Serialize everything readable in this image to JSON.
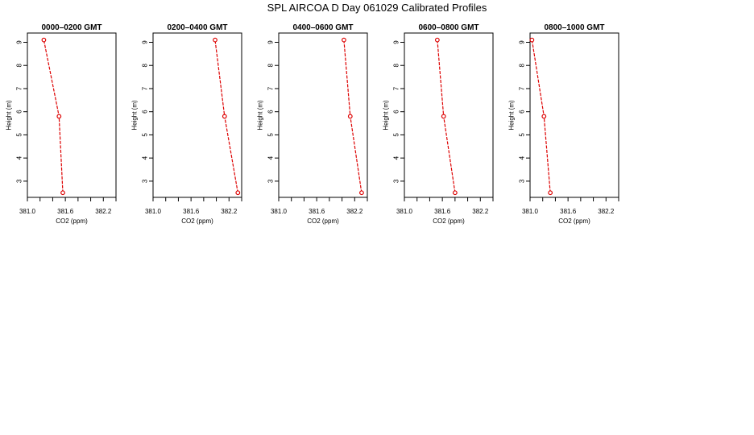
{
  "title": "SPL AIRCOA D  Day 061029  Calibrated Profiles",
  "colors": {
    "line": "#dd0000",
    "axis": "#000000"
  },
  "chart_data": [
    {
      "type": "line",
      "title": "0000–0200 GMT",
      "xlabel": "CO2 (ppm)",
      "ylabel": "Height (m)",
      "xlim": [
        381.0,
        382.4
      ],
      "ylim": [
        2.3,
        9.4
      ],
      "xticks": [
        381.0,
        381.2,
        381.4,
        381.6,
        381.8,
        382.0,
        382.2,
        382.4
      ],
      "xtick_labels": [
        "381.0",
        "",
        "381.6",
        "",
        "382.2"
      ],
      "xtick_labels_at": [
        381.0,
        381.3,
        381.6,
        381.9,
        382.2
      ],
      "yticks": [
        3,
        4,
        5,
        6,
        7,
        8,
        9
      ],
      "ytick_labels": [
        "3",
        "4",
        "5",
        "6",
        "7",
        "8",
        "9"
      ],
      "series": [
        {
          "x": [
            381.56,
            381.5,
            381.26
          ],
          "y": [
            2.5,
            5.8,
            9.1
          ]
        }
      ]
    },
    {
      "type": "line",
      "title": "0200–0400 GMT",
      "xlabel": "CO2 (ppm)",
      "ylabel": "Height (m)",
      "xlim": [
        381.0,
        382.4
      ],
      "ylim": [
        2.3,
        9.4
      ],
      "xticks": [
        381.0,
        381.2,
        381.4,
        381.6,
        381.8,
        382.0,
        382.2,
        382.4
      ],
      "xtick_labels": [
        "381.0",
        "",
        "381.6",
        "",
        "382.2"
      ],
      "xtick_labels_at": [
        381.0,
        381.3,
        381.6,
        381.9,
        382.2
      ],
      "yticks": [
        3,
        4,
        5,
        6,
        7,
        8,
        9
      ],
      "ytick_labels": [
        "3",
        "4",
        "5",
        "6",
        "7",
        "8",
        "9"
      ],
      "series": [
        {
          "x": [
            382.34,
            382.13,
            381.98
          ],
          "y": [
            2.5,
            5.8,
            9.1
          ]
        }
      ]
    },
    {
      "type": "line",
      "title": "0400–0600 GMT",
      "xlabel": "CO2 (ppm)",
      "ylabel": "Height (m)",
      "xlim": [
        381.0,
        382.4
      ],
      "ylim": [
        2.3,
        9.4
      ],
      "xticks": [
        381.0,
        381.2,
        381.4,
        381.6,
        381.8,
        382.0,
        382.2,
        382.4
      ],
      "xtick_labels": [
        "381.0",
        "",
        "381.6",
        "",
        "382.2"
      ],
      "xtick_labels_at": [
        381.0,
        381.3,
        381.6,
        381.9,
        382.2
      ],
      "yticks": [
        3,
        4,
        5,
        6,
        7,
        8,
        9
      ],
      "ytick_labels": [
        "3",
        "4",
        "5",
        "6",
        "7",
        "8",
        "9"
      ],
      "series": [
        {
          "x": [
            382.31,
            382.13,
            382.03
          ],
          "y": [
            2.5,
            5.8,
            9.1
          ]
        }
      ]
    },
    {
      "type": "line",
      "title": "0600–0800 GMT",
      "xlabel": "CO2 (ppm)",
      "ylabel": "Height (m)",
      "xlim": [
        381.0,
        382.4
      ],
      "ylim": [
        2.3,
        9.4
      ],
      "xticks": [
        381.0,
        381.2,
        381.4,
        381.6,
        381.8,
        382.0,
        382.2,
        382.4
      ],
      "xtick_labels": [
        "381.0",
        "",
        "381.6",
        "",
        "382.2"
      ],
      "xtick_labels_at": [
        381.0,
        381.3,
        381.6,
        381.9,
        382.2
      ],
      "yticks": [
        3,
        4,
        5,
        6,
        7,
        8,
        9
      ],
      "ytick_labels": [
        "3",
        "4",
        "5",
        "6",
        "7",
        "8",
        "9"
      ],
      "series": [
        {
          "x": [
            381.8,
            381.62,
            381.52
          ],
          "y": [
            2.5,
            5.8,
            9.1
          ]
        }
      ]
    },
    {
      "type": "line",
      "title": "0800–1000 GMT",
      "xlabel": "CO2 (ppm)",
      "ylabel": "Height (m)",
      "xlim": [
        381.0,
        382.4
      ],
      "ylim": [
        2.3,
        9.4
      ],
      "xticks": [
        381.0,
        381.2,
        381.4,
        381.6,
        381.8,
        382.0,
        382.2,
        382.4
      ],
      "xtick_labels": [
        "381.0",
        "",
        "381.6",
        "",
        "382.2"
      ],
      "xtick_labels_at": [
        381.0,
        381.3,
        381.6,
        381.9,
        382.2
      ],
      "yticks": [
        3,
        4,
        5,
        6,
        7,
        8,
        9
      ],
      "ytick_labels": [
        "3",
        "4",
        "5",
        "6",
        "7",
        "8",
        "9"
      ],
      "series": [
        {
          "x": [
            381.32,
            381.22,
            381.03
          ],
          "y": [
            2.5,
            5.8,
            9.1
          ]
        }
      ]
    }
  ]
}
